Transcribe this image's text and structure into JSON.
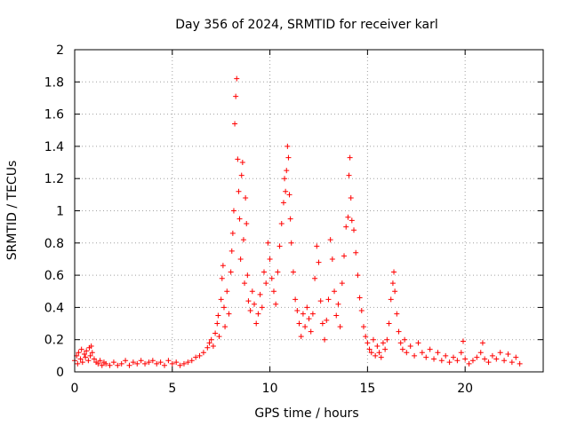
{
  "chart_data": {
    "type": "scatter",
    "title": "Day 356 of 2024, SRMTID for receiver karl",
    "xlabel": "GPS time / hours",
    "ylabel": "SRMTID / TECUs",
    "xlim": [
      0,
      24
    ],
    "ylim": [
      0,
      2
    ],
    "xticks": [
      0,
      5,
      10,
      15,
      20
    ],
    "xtick_labels": [
      "0",
      "5",
      "10",
      "15",
      "20"
    ],
    "yticks": [
      0,
      0.2,
      0.4,
      0.6,
      0.8,
      1,
      1.2,
      1.4,
      1.6,
      1.8,
      2
    ],
    "ytick_labels": [
      "0",
      "0.2",
      "0.4",
      "0.6",
      "0.8",
      "1",
      "1.2",
      "1.4",
      "1.6",
      "1.8",
      "2"
    ],
    "grid": true,
    "marker": "+",
    "color": "#ff0000",
    "series": [
      {
        "name": "SRMTID",
        "points": [
          [
            0.0,
            0.07
          ],
          [
            0.1,
            0.1
          ],
          [
            0.15,
            0.05
          ],
          [
            0.2,
            0.12
          ],
          [
            0.3,
            0.08
          ],
          [
            0.35,
            0.14
          ],
          [
            0.4,
            0.06
          ],
          [
            0.5,
            0.11
          ],
          [
            0.55,
            0.09
          ],
          [
            0.6,
            0.13
          ],
          [
            0.7,
            0.07
          ],
          [
            0.75,
            0.15
          ],
          [
            0.8,
            0.1
          ],
          [
            0.85,
            0.16
          ],
          [
            0.9,
            0.12
          ],
          [
            1.0,
            0.08
          ],
          [
            1.1,
            0.06
          ],
          [
            1.2,
            0.05
          ],
          [
            1.3,
            0.07
          ],
          [
            1.4,
            0.04
          ],
          [
            1.5,
            0.06
          ],
          [
            1.6,
            0.05
          ],
          [
            1.8,
            0.04
          ],
          [
            2.0,
            0.06
          ],
          [
            2.2,
            0.04
          ],
          [
            2.4,
            0.05
          ],
          [
            2.6,
            0.07
          ],
          [
            2.8,
            0.04
          ],
          [
            3.0,
            0.06
          ],
          [
            3.2,
            0.05
          ],
          [
            3.4,
            0.07
          ],
          [
            3.6,
            0.05
          ],
          [
            3.8,
            0.06
          ],
          [
            4.0,
            0.07
          ],
          [
            4.2,
            0.05
          ],
          [
            4.4,
            0.06
          ],
          [
            4.6,
            0.04
          ],
          [
            4.8,
            0.07
          ],
          [
            5.0,
            0.05
          ],
          [
            5.2,
            0.06
          ],
          [
            5.4,
            0.04
          ],
          [
            5.6,
            0.05
          ],
          [
            5.8,
            0.06
          ],
          [
            6.0,
            0.07
          ],
          [
            6.2,
            0.09
          ],
          [
            6.4,
            0.1
          ],
          [
            6.6,
            0.12
          ],
          [
            6.8,
            0.15
          ],
          [
            6.9,
            0.18
          ],
          [
            7.0,
            0.2
          ],
          [
            7.1,
            0.16
          ],
          [
            7.2,
            0.24
          ],
          [
            7.3,
            0.3
          ],
          [
            7.35,
            0.35
          ],
          [
            7.4,
            0.22
          ],
          [
            7.5,
            0.45
          ],
          [
            7.55,
            0.58
          ],
          [
            7.6,
            0.66
          ],
          [
            7.65,
            0.4
          ],
          [
            7.7,
            0.28
          ],
          [
            7.8,
            0.5
          ],
          [
            7.9,
            0.36
          ],
          [
            8.0,
            0.62
          ],
          [
            8.05,
            0.75
          ],
          [
            8.1,
            0.86
          ],
          [
            8.15,
            1.0
          ],
          [
            8.2,
            1.54
          ],
          [
            8.25,
            1.71
          ],
          [
            8.3,
            1.82
          ],
          [
            8.35,
            1.32
          ],
          [
            8.4,
            1.12
          ],
          [
            8.45,
            0.95
          ],
          [
            8.5,
            0.7
          ],
          [
            8.55,
            1.22
          ],
          [
            8.6,
            1.3
          ],
          [
            8.65,
            0.82
          ],
          [
            8.7,
            0.55
          ],
          [
            8.75,
            1.08
          ],
          [
            8.8,
            0.92
          ],
          [
            8.85,
            0.6
          ],
          [
            8.9,
            0.44
          ],
          [
            9.0,
            0.38
          ],
          [
            9.1,
            0.5
          ],
          [
            9.2,
            0.42
          ],
          [
            9.3,
            0.3
          ],
          [
            9.4,
            0.36
          ],
          [
            9.5,
            0.48
          ],
          [
            9.6,
            0.4
          ],
          [
            9.7,
            0.62
          ],
          [
            9.8,
            0.55
          ],
          [
            9.9,
            0.8
          ],
          [
            10.0,
            0.7
          ],
          [
            10.1,
            0.58
          ],
          [
            10.2,
            0.5
          ],
          [
            10.3,
            0.42
          ],
          [
            10.4,
            0.62
          ],
          [
            10.5,
            0.78
          ],
          [
            10.6,
            0.92
          ],
          [
            10.7,
            1.05
          ],
          [
            10.75,
            1.2
          ],
          [
            10.8,
            1.12
          ],
          [
            10.85,
            1.25
          ],
          [
            10.9,
            1.4
          ],
          [
            10.95,
            1.33
          ],
          [
            11.0,
            1.1
          ],
          [
            11.05,
            0.95
          ],
          [
            11.1,
            0.8
          ],
          [
            11.2,
            0.62
          ],
          [
            11.3,
            0.45
          ],
          [
            11.4,
            0.38
          ],
          [
            11.5,
            0.3
          ],
          [
            11.6,
            0.22
          ],
          [
            11.7,
            0.36
          ],
          [
            11.8,
            0.28
          ],
          [
            11.9,
            0.4
          ],
          [
            12.0,
            0.33
          ],
          [
            12.1,
            0.25
          ],
          [
            12.2,
            0.36
          ],
          [
            12.3,
            0.58
          ],
          [
            12.4,
            0.78
          ],
          [
            12.5,
            0.68
          ],
          [
            12.6,
            0.44
          ],
          [
            12.7,
            0.3
          ],
          [
            12.8,
            0.2
          ],
          [
            12.9,
            0.32
          ],
          [
            13.0,
            0.45
          ],
          [
            13.1,
            0.82
          ],
          [
            13.2,
            0.7
          ],
          [
            13.3,
            0.5
          ],
          [
            13.4,
            0.35
          ],
          [
            13.5,
            0.42
          ],
          [
            13.6,
            0.28
          ],
          [
            13.7,
            0.55
          ],
          [
            13.8,
            0.72
          ],
          [
            13.9,
            0.9
          ],
          [
            14.0,
            0.96
          ],
          [
            14.05,
            1.22
          ],
          [
            14.1,
            1.33
          ],
          [
            14.15,
            1.08
          ],
          [
            14.2,
            0.94
          ],
          [
            14.3,
            0.88
          ],
          [
            14.4,
            0.74
          ],
          [
            14.5,
            0.6
          ],
          [
            14.6,
            0.46
          ],
          [
            14.7,
            0.38
          ],
          [
            14.8,
            0.28
          ],
          [
            14.9,
            0.22
          ],
          [
            15.0,
            0.18
          ],
          [
            15.1,
            0.14
          ],
          [
            15.2,
            0.12
          ],
          [
            15.3,
            0.2
          ],
          [
            15.4,
            0.1
          ],
          [
            15.5,
            0.16
          ],
          [
            15.6,
            0.12
          ],
          [
            15.7,
            0.09
          ],
          [
            15.8,
            0.18
          ],
          [
            15.9,
            0.14
          ],
          [
            16.0,
            0.2
          ],
          [
            16.1,
            0.3
          ],
          [
            16.2,
            0.45
          ],
          [
            16.3,
            0.55
          ],
          [
            16.35,
            0.62
          ],
          [
            16.4,
            0.5
          ],
          [
            16.5,
            0.36
          ],
          [
            16.6,
            0.25
          ],
          [
            16.7,
            0.18
          ],
          [
            16.8,
            0.14
          ],
          [
            16.9,
            0.2
          ],
          [
            17.0,
            0.12
          ],
          [
            17.2,
            0.16
          ],
          [
            17.4,
            0.1
          ],
          [
            17.6,
            0.18
          ],
          [
            17.8,
            0.12
          ],
          [
            18.0,
            0.09
          ],
          [
            18.2,
            0.14
          ],
          [
            18.4,
            0.08
          ],
          [
            18.6,
            0.12
          ],
          [
            18.8,
            0.07
          ],
          [
            19.0,
            0.1
          ],
          [
            19.2,
            0.06
          ],
          [
            19.4,
            0.09
          ],
          [
            19.6,
            0.07
          ],
          [
            19.8,
            0.12
          ],
          [
            19.9,
            0.19
          ],
          [
            20.0,
            0.08
          ],
          [
            20.2,
            0.05
          ],
          [
            20.4,
            0.07
          ],
          [
            20.6,
            0.09
          ],
          [
            20.8,
            0.12
          ],
          [
            20.9,
            0.18
          ],
          [
            21.0,
            0.08
          ],
          [
            21.2,
            0.06
          ],
          [
            21.4,
            0.1
          ],
          [
            21.6,
            0.08
          ],
          [
            21.8,
            0.12
          ],
          [
            22.0,
            0.07
          ],
          [
            22.2,
            0.11
          ],
          [
            22.4,
            0.06
          ],
          [
            22.6,
            0.09
          ],
          [
            22.8,
            0.05
          ]
        ]
      }
    ]
  }
}
